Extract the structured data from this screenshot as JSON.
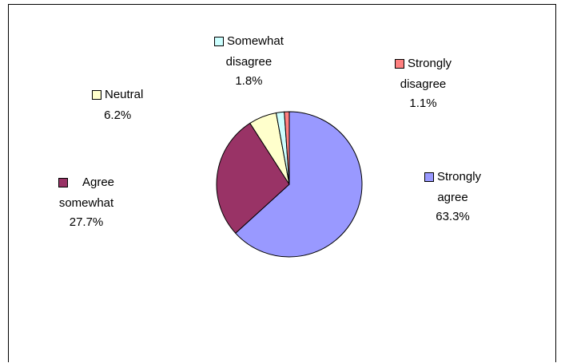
{
  "chart_data": {
    "type": "pie",
    "slices": [
      {
        "label": [
          "Strongly",
          "agree"
        ],
        "value": 63.3,
        "value_text": "63.3%",
        "color": "#9999ff"
      },
      {
        "label": [
          "Agree",
          "somewhat"
        ],
        "value": 27.7,
        "value_text": "27.7%",
        "color": "#993366"
      },
      {
        "label": [
          "Neutral"
        ],
        "value": 6.2,
        "value_text": "6.2%",
        "color": "#ffffcc"
      },
      {
        "label": [
          "Somewhat",
          "disagree"
        ],
        "value": 1.8,
        "value_text": "1.8%",
        "color": "#ccffff"
      },
      {
        "label": [
          "Strongly",
          "disagree"
        ],
        "value": 1.1,
        "value_text": "1.1%",
        "color": "#ff8080"
      }
    ],
    "start_angle_deg": 0,
    "direction": "clockwise"
  }
}
